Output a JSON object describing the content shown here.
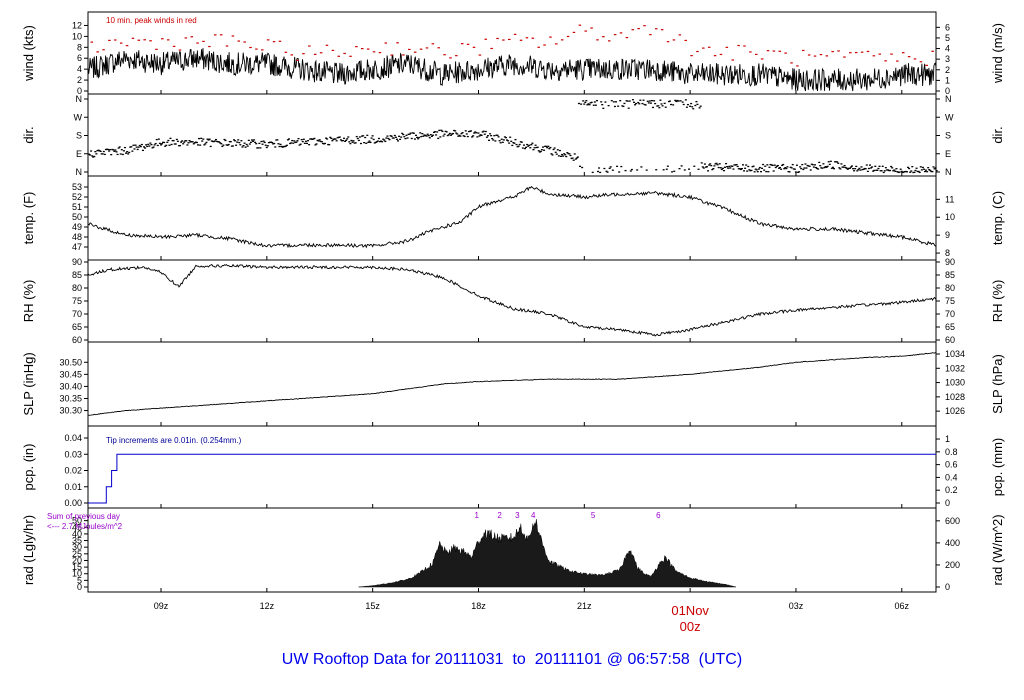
{
  "colors": {
    "frame": "#000000",
    "series": "#000000",
    "peak": "#cc0000",
    "precip": "#0000cc",
    "note_blue": "#000099",
    "note_purple": "#9900cc",
    "date_label": "#cc0000",
    "footer": "#0000ee"
  },
  "footer": {
    "prefix": "UW Rooftop Data for",
    "start": "20111031",
    "to": "to",
    "end": "20111101",
    "at": "@",
    "time": "06:57:58",
    "zone": "(UTC)"
  },
  "x_axis": {
    "ticks": [
      {
        "hour": 9,
        "label": "09z"
      },
      {
        "hour": 12,
        "label": "12z"
      },
      {
        "hour": 15,
        "label": "15z"
      },
      {
        "hour": 18,
        "label": "18z"
      },
      {
        "hour": 21,
        "label": "21z"
      },
      {
        "hour": 24,
        "label": "01Nov"
      },
      {
        "hour": 27,
        "label": "03z"
      },
      {
        "hour": 30,
        "label": "06z"
      }
    ],
    "midnight_date": "01Nov",
    "midnight_z": "00z",
    "start_hour": 6.93,
    "end_hour": 30.97
  },
  "chart_data": [
    {
      "type": "line",
      "panel": "wind",
      "ylabel_left": "wind (kts)",
      "ylabel_right": "wind (m/s)",
      "ylim": [
        0,
        13
      ],
      "left_ticks": [
        "0",
        "2",
        "4",
        "6",
        "8",
        "10",
        "12"
      ],
      "right_ticks": [
        "0",
        "1",
        "2",
        "3",
        "4",
        "5",
        "6"
      ],
      "annotation": "10 min. peak winds in red",
      "series": [
        {
          "x": [
            7,
            8,
            9,
            10,
            11,
            12,
            13,
            14,
            15,
            16,
            17,
            18,
            19,
            20,
            21,
            22,
            23,
            24,
            25,
            26,
            27,
            28,
            29,
            30,
            31
          ],
          "values": [
            4,
            6,
            5,
            6,
            5,
            5,
            4,
            3,
            4,
            5,
            3,
            4,
            5,
            4,
            4,
            4,
            4,
            3,
            3,
            3,
            2,
            2,
            2,
            3,
            3
          ]
        },
        {
          "name": "10 min. peak winds",
          "x": [
            7,
            8,
            9,
            10,
            11,
            12,
            13,
            14,
            15,
            16,
            17,
            18,
            19,
            20,
            21,
            22,
            23,
            24,
            25,
            26,
            27,
            28,
            29,
            30,
            31
          ],
          "values": [
            8,
            9,
            9,
            9,
            9,
            8,
            7,
            7,
            8,
            8,
            7,
            8,
            9,
            9,
            11,
            10,
            12,
            8,
            7,
            7,
            6,
            6,
            6,
            6,
            6
          ]
        }
      ]
    },
    {
      "type": "scatter",
      "panel": "dir",
      "ylabel_left": "dir.",
      "ylabel_right": "dir.",
      "ylim": [
        0,
        360
      ],
      "left_ticks": [
        "N",
        "E",
        "S",
        "W",
        "N"
      ],
      "right_ticks": [
        "N",
        "E",
        "S",
        "W",
        "N"
      ],
      "x": [
        7,
        8,
        9,
        10,
        11,
        12,
        13,
        14,
        15,
        16,
        17,
        18,
        19,
        20,
        21,
        22,
        23,
        24,
        25,
        26,
        27,
        28,
        29,
        30,
        31
      ],
      "values": [
        95,
        110,
        150,
        150,
        145,
        140,
        150,
        160,
        165,
        180,
        190,
        190,
        150,
        110,
        60,
        360,
        350,
        30,
        25,
        20,
        20,
        40,
        20,
        10,
        10
      ]
    },
    {
      "type": "line",
      "panel": "temp",
      "ylabel_left": "temp. (F)",
      "ylabel_right": "temp. (C)",
      "ylim": [
        46.5,
        53.2
      ],
      "left_ticks": [
        "47",
        "48",
        "49",
        "50",
        "51",
        "52",
        "53"
      ],
      "right_ticks": [
        "8",
        "9",
        "10",
        "11"
      ],
      "x": [
        6.93,
        8,
        9,
        10,
        11,
        12,
        13,
        14,
        15,
        16,
        16.5,
        17,
        17.5,
        18,
        18.5,
        19,
        19.5,
        20,
        21,
        22,
        23,
        24,
        25,
        26,
        27,
        28,
        29,
        30,
        30.97
      ],
      "values": [
        49.3,
        48.2,
        48.0,
        48.2,
        47.8,
        47.1,
        47.2,
        47.2,
        47.1,
        47.6,
        48.4,
        49.0,
        49.5,
        51.0,
        51.6,
        52.0,
        53.0,
        52.3,
        52.0,
        52.3,
        52.4,
        52.0,
        50.8,
        49.3,
        48.8,
        48.8,
        48.4,
        48.0,
        47.2
      ]
    },
    {
      "type": "line",
      "panel": "rh",
      "ylabel_left": "RH (%)",
      "ylabel_right": "RH (%)",
      "ylim": [
        60,
        90
      ],
      "left_ticks": [
        "60",
        "65",
        "70",
        "75",
        "80",
        "85",
        "90"
      ],
      "right_ticks": [
        "60",
        "65",
        "70",
        "75",
        "80",
        "85",
        "90"
      ],
      "x": [
        6.93,
        7.5,
        8.5,
        9,
        9.5,
        10,
        11,
        12,
        13,
        14,
        15,
        16,
        17,
        18,
        19,
        20,
        21,
        22,
        23,
        24,
        25,
        26,
        27,
        28,
        29,
        30,
        30.97
      ],
      "values": [
        85,
        87,
        88,
        86,
        80.5,
        88.5,
        88.5,
        88,
        88,
        88,
        88,
        87,
        84,
        77,
        72,
        70,
        65,
        64,
        62,
        64,
        67,
        70,
        71.5,
        72.5,
        73.5,
        74.5,
        76
      ]
    },
    {
      "type": "line",
      "panel": "slp",
      "ylabel_left": "SLP (inHg)",
      "ylabel_right": "SLP (hPa)",
      "ylim": [
        30.265,
        30.555
      ],
      "left_ticks": [
        "30.30",
        "30.35",
        "30.40",
        "30.45",
        "30.50"
      ],
      "right_ticks": [
        "1026",
        "1028",
        "1030",
        "1032",
        "1034"
      ],
      "x": [
        6.93,
        8,
        9,
        10,
        11,
        12,
        13,
        14,
        15,
        16,
        17,
        18,
        19,
        20,
        21,
        22,
        23,
        24,
        25,
        26,
        27,
        28,
        29,
        30,
        30.97
      ],
      "values": [
        30.28,
        30.3,
        30.31,
        30.32,
        30.33,
        30.34,
        30.35,
        30.36,
        30.37,
        30.39,
        30.41,
        30.42,
        30.425,
        30.43,
        30.43,
        30.43,
        30.44,
        30.45,
        30.465,
        30.48,
        30.5,
        30.51,
        30.52,
        30.525,
        30.54
      ]
    },
    {
      "type": "line",
      "panel": "pcp",
      "ylabel_left": "pcp. (in)",
      "ylabel_right": "pcp. (mm)",
      "ylim": [
        0,
        0.04
      ],
      "left_ticks": [
        "0.00",
        "0.01",
        "0.02",
        "0.03",
        "0.04"
      ],
      "right_ticks": [
        "0",
        "0.2",
        "0.4",
        "0.6",
        "0.8",
        "1"
      ],
      "annotation": "Tip increments are 0.01in. (0.254mm.)",
      "x": [
        6.93,
        7.45,
        7.45,
        7.6,
        7.6,
        7.75,
        7.75,
        30.97
      ],
      "values": [
        0,
        0,
        0.01,
        0.01,
        0.02,
        0.02,
        0.03,
        0.03
      ]
    },
    {
      "type": "area",
      "panel": "rad",
      "ylabel_left": "rad (Lgly/hr)",
      "ylabel_right": "rad (W/m^2)",
      "ylim": [
        0,
        55
      ],
      "left_ticks": [
        "0",
        "5",
        "10",
        "15",
        "20",
        "25",
        "30",
        "35",
        "40",
        "45",
        "50"
      ],
      "right_ticks": [
        "0",
        "200",
        "400",
        "600"
      ],
      "annotation_lines": [
        "Sum of previous day",
        "<--- 2.7 MJoules/m^2"
      ],
      "markers": [
        {
          "x": 17.95,
          "label": "1"
        },
        {
          "x": 18.6,
          "label": "2"
        },
        {
          "x": 19.1,
          "label": "3"
        },
        {
          "x": 19.55,
          "label": "4"
        },
        {
          "x": 21.25,
          "label": "5"
        },
        {
          "x": 23.1,
          "label": "6"
        }
      ],
      "x": [
        14.6,
        15,
        15.5,
        16,
        16.3,
        16.5,
        16.7,
        16.9,
        17.1,
        17.3,
        17.6,
        17.8,
        18.0,
        18.2,
        18.6,
        19.0,
        19.2,
        19.4,
        19.6,
        19.8,
        20.0,
        20.5,
        21.0,
        21.5,
        22.0,
        22.3,
        22.5,
        22.7,
        22.9,
        23.1,
        23.3,
        23.6,
        24.0,
        24.5,
        25.0,
        25.3
      ],
      "values": [
        0,
        1,
        3,
        6,
        10,
        14,
        18,
        33,
        26,
        30,
        27,
        23,
        35,
        42,
        37,
        38,
        46,
        36,
        52,
        34,
        20,
        13,
        10,
        9,
        13,
        30,
        15,
        10,
        8,
        17,
        23,
        12,
        7,
        4,
        2,
        0
      ]
    }
  ]
}
